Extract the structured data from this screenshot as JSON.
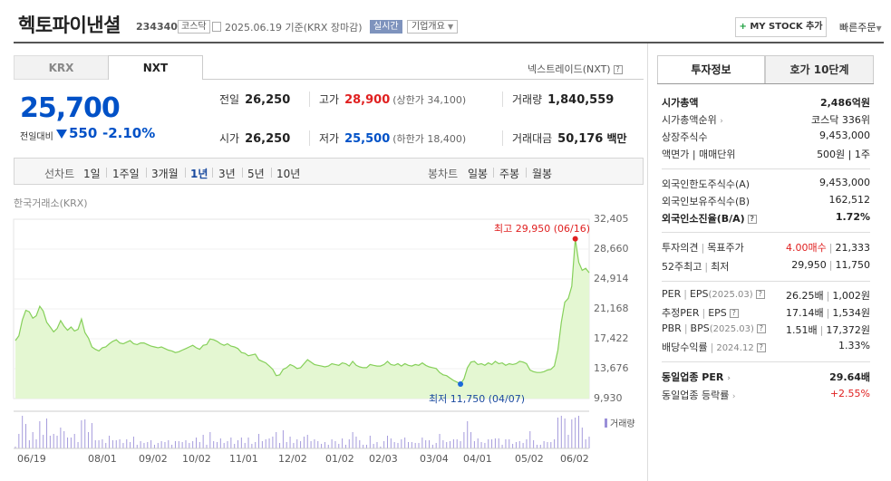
{
  "header": {
    "title": "헥토파이낸셜",
    "code": "234340",
    "market": "코스닥",
    "date_text": "2025.06.19  기준(KRX 장마감)",
    "realtime": "실시간",
    "company_info": "기업개요",
    "mystock": "MY STOCK 추가",
    "quick_order": "빠른주문"
  },
  "market_tabs": {
    "krx": "KRX",
    "nxt": "NXT"
  },
  "nxt_label": "넥스트레이드(NXT)",
  "quote": {
    "price": "25,700",
    "change_label": "전일대비",
    "change_amount": "550",
    "change_percent": "-2.10%"
  },
  "summary": {
    "prev_close_label": "전일",
    "prev_close": "26,250",
    "high_label": "고가",
    "high": "28,900",
    "upper_limit": "(상한가 34,100)",
    "volume_label": "거래량",
    "volume": "1,840,559",
    "open_label": "시가",
    "open": "26,250",
    "low_label": "저가",
    "low": "25,500",
    "lower_limit": "(하한가 18,400)",
    "amount_label": "거래대금",
    "amount": "50,176",
    "amount_unit": "백만"
  },
  "chart_tabs": {
    "line_label": "선차트",
    "line_items": [
      "1일",
      "1주일",
      "3개월",
      "1년",
      "3년",
      "5년",
      "10년"
    ],
    "candle_label": "봉차트",
    "candle_items": [
      "일봉",
      "주봉",
      "월봉"
    ]
  },
  "chart_data": {
    "type": "area",
    "source": "한국거래소(KRX)",
    "ylim": [
      9930,
      32405
    ],
    "y_ticks": [
      "32,405",
      "28,660",
      "24,914",
      "21,168",
      "17,422",
      "13,676",
      "9,930"
    ],
    "x_ticks": [
      "06/19",
      "08/01",
      "09/02",
      "10/02",
      "11/01",
      "12/02",
      "01/02",
      "02/03",
      "03/04",
      "04/01",
      "05/02",
      "06/02"
    ],
    "max_label": "최고 29,950 (06/16)",
    "min_label": "최저 11,750 (04/07)",
    "volume_label": "거래량",
    "series": [
      {
        "values": [
          17200,
          17800,
          19800,
          21000,
          20800,
          20000,
          20300,
          21500,
          20900,
          19500,
          18900,
          18300,
          18700,
          19700,
          19000,
          18500,
          18900,
          18400,
          18600,
          19900,
          18200,
          17500,
          16400,
          16100,
          15900,
          16300,
          16400,
          16800,
          17100,
          17300,
          16900,
          16800,
          17000,
          17200,
          16800,
          16700,
          16900,
          16900,
          16700,
          16500,
          16400,
          16300,
          16400,
          16200,
          16000,
          15900,
          15700,
          15800,
          16000,
          16200,
          16400,
          16600,
          16300,
          16100,
          16600,
          16700,
          17400,
          17300,
          17100,
          16800,
          16600,
          16800,
          16500,
          16400,
          16200,
          15700,
          15600,
          15300,
          15400,
          15500,
          14800,
          14600,
          14400,
          14000,
          13600,
          12800,
          12900,
          13600,
          13800,
          14200,
          14000,
          13700,
          13800,
          14300,
          14800,
          14500,
          14200,
          14100,
          14000,
          13900,
          14000,
          14300,
          14200,
          14100,
          14400,
          14300,
          14000,
          14600,
          14100,
          13900,
          13800,
          13800,
          14200,
          14100,
          14000,
          14000,
          14200,
          14600,
          14200,
          14100,
          14300,
          14000,
          14300,
          14100,
          14000,
          14200,
          14100,
          14400,
          14100,
          13900,
          13800,
          13700,
          13200,
          12900,
          12800,
          12500,
          12200,
          12000,
          11750,
          12400,
          13800,
          14500,
          14600,
          14200,
          14300,
          14100,
          14400,
          14200,
          14600,
          14300,
          14400,
          14100,
          14300,
          14200,
          14300,
          14600,
          14500,
          14300,
          13500,
          13300,
          13200,
          13200,
          13300,
          13500,
          13600,
          14000,
          16000,
          19500,
          22000,
          22500,
          24000,
          29950,
          27000,
          26000,
          26250,
          25700
        ]
      }
    ]
  },
  "tabs_right": {
    "invest": "투자정보",
    "orderbook": "호가 10단계"
  },
  "invest": {
    "rows1": [
      {
        "k": "시가총액",
        "v": "2,486억원",
        "bold": true
      },
      {
        "k": "시가총액순위",
        "v": "코스닥 336위",
        "arrow": true
      },
      {
        "k": "상장주식수",
        "v": "9,453,000"
      },
      {
        "k": "액면가 | 매매단위",
        "v": "500원 | 1주"
      }
    ],
    "rows2": [
      {
        "k": "외국인한도주식수(A)",
        "v": "9,453,000"
      },
      {
        "k": "외국인보유주식수(B)",
        "v": "162,512"
      },
      {
        "k": "외국인소진율(B/A)",
        "v": "1.72%",
        "bold": true,
        "q": true
      }
    ],
    "opinion_k": "투자의견",
    "target_k": "목표주가",
    "opinion_v": "4.00매수",
    "target_v": "21,333",
    "high52_k": "52주최고",
    "low52_k": "최저",
    "high52_v": "29,950",
    "low52_v": "11,750",
    "per_k": "PER",
    "eps_k": "EPS",
    "per_period": "(2025.03)",
    "per_v": "26.25배",
    "eps_v": "1,002원",
    "eper_k": "추정PER",
    "eeps_k": "EPS",
    "eper_v": "17.14배",
    "eeps_v": "1,534원",
    "pbr_k": "PBR",
    "bps_k": "BPS",
    "pbr_period": "(2025.03)",
    "pbr_v": "1.51배",
    "bps_v": "17,372원",
    "div_k": "배당수익률",
    "div_period": "2024.12",
    "div_v": "1.33%",
    "sector_per_k": "동일업종 PER",
    "sector_per_v": "29.64배",
    "sector_chg_k": "동일업종 등락률",
    "sector_chg_v": "+2.55%"
  }
}
